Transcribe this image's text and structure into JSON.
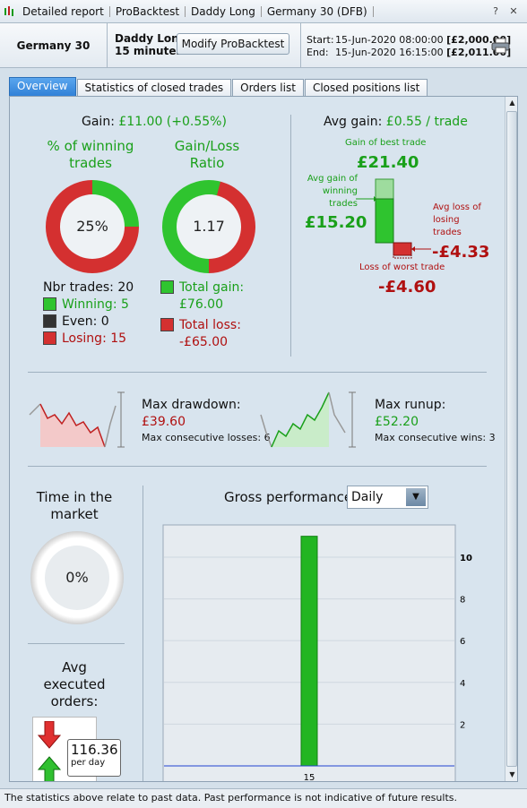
{
  "titlebar": {
    "segments": [
      "Detailed report",
      "ProBacktest",
      "Daddy Long",
      "Germany 30 (DFB)"
    ],
    "help_icon": "question-icon",
    "close_icon": "close-icon"
  },
  "header": {
    "instrument": "Germany 30 (DFB)",
    "strategy_name": "Daddy Long",
    "strategy_timeframe": "15 minutes",
    "modify_button": "Modify ProBacktest",
    "start_label": "Start:",
    "start_date": "15-Jun-2020 08:00:00",
    "start_capital": "[£2,000.00]",
    "end_label": "End:",
    "end_date": "15-Jun-2020 16:15:00",
    "end_capital": "[£2,011.00]"
  },
  "tabs": [
    "Overview",
    "Statistics of closed trades",
    "Orders list",
    "Closed positions list"
  ],
  "summary": {
    "gain_label": "Gain:",
    "gain_value": "£11.00 (+0.55%)",
    "winning_title_1": "% of winning",
    "winning_title_2": "trades",
    "winning_pct": "25%",
    "winning_fraction": 0.25,
    "ratio_title_1": "Gain/Loss",
    "ratio_title_2": "Ratio",
    "ratio_value": "1.17",
    "ratio_fraction": 0.54,
    "nbr_trades": "Nbr trades: 20",
    "winning": "Winning: 5",
    "even": "Even: 0",
    "losing": "Losing: 15",
    "total_gain_label": "Total gain:",
    "total_gain": "£76.00",
    "total_loss_label": "Total loss:",
    "total_loss": "-£65.00"
  },
  "avg": {
    "avg_gain_label": "Avg gain:",
    "avg_gain_value": "£0.55 / trade",
    "best_label": "Gain of best trade",
    "best_value": "£21.40",
    "avg_win_label_1": "Avg gain of",
    "avg_win_label_2": "winning",
    "avg_win_label_3": "trades",
    "avg_win_value": "£15.20",
    "avg_loss_label_1": "Avg loss of",
    "avg_loss_label_2": "losing",
    "avg_loss_label_3": "trades",
    "avg_loss_value": "-£4.33",
    "worst_label": "Loss of worst trade",
    "worst_value": "-£4.60"
  },
  "drawdown": {
    "label": "Max drawdown:",
    "value": "£39.60",
    "consecutive": "Max consecutive losses: 6"
  },
  "runup": {
    "label": "Max runup:",
    "value": "£52.20",
    "consecutive": "Max consecutive wins: 3"
  },
  "market": {
    "title_1": "Time in the",
    "title_2": "market",
    "value": "0%"
  },
  "orders": {
    "title_1": "Avg",
    "title_2": "executed",
    "title_3": "orders:",
    "value": "116.36",
    "unit": "per day"
  },
  "gross": {
    "title": "Gross performance",
    "period": "Daily"
  },
  "chart_data": {
    "type": "bar",
    "title": "Gross performance",
    "categories": [
      "15"
    ],
    "values": [
      11
    ],
    "ylim": [
      0,
      11.5
    ],
    "yticks": [
      "2",
      "4",
      "6",
      "8",
      "10"
    ],
    "ytick_values": [
      2,
      4,
      6,
      8,
      10
    ],
    "grid": true,
    "colors": {
      "bar": "#22b522",
      "baseline": "#2040d0"
    }
  },
  "footer": {
    "text": "The statistics above relate to past data. Past performance is not indicative of future results."
  },
  "colors": {
    "green": "#1aa01a",
    "red": "#b01010",
    "tab_active": "#3a8ae0"
  }
}
